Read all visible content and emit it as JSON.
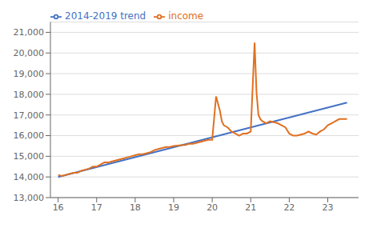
{
  "chart_data": {
    "type": "line",
    "series": [
      {
        "name": "2014-2019 trend",
        "color": "#4472C4",
        "x": [
          16.0,
          23.5
        ],
        "values": [
          14000,
          17600
        ]
      },
      {
        "name": "income",
        "color": "#E07020",
        "x": [
          16.0,
          16.1,
          16.2,
          16.3,
          16.4,
          16.5,
          16.6,
          16.7,
          16.8,
          16.9,
          17.0,
          17.1,
          17.2,
          17.3,
          17.4,
          17.5,
          17.6,
          17.7,
          17.8,
          17.9,
          18.0,
          18.1,
          18.2,
          18.3,
          18.4,
          18.5,
          18.6,
          18.7,
          18.8,
          18.9,
          19.0,
          19.1,
          19.2,
          19.3,
          19.4,
          19.5,
          19.6,
          19.7,
          19.8,
          19.9,
          20.0,
          20.1,
          20.2,
          20.25,
          20.3,
          20.4,
          20.5,
          20.6,
          20.7,
          20.8,
          20.9,
          21.0,
          21.1,
          21.15,
          21.2,
          21.25,
          21.3,
          21.4,
          21.5,
          21.6,
          21.7,
          21.8,
          21.9,
          22.0,
          22.1,
          22.2,
          22.3,
          22.4,
          22.5,
          22.6,
          22.7,
          22.8,
          22.9,
          23.0,
          23.1,
          23.2,
          23.3,
          23.4,
          23.5
        ],
        "values": [
          14100,
          14050,
          14100,
          14150,
          14200,
          14200,
          14300,
          14350,
          14400,
          14500,
          14500,
          14600,
          14700,
          14700,
          14750,
          14800,
          14850,
          14900,
          14950,
          15000,
          15050,
          15100,
          15100,
          15150,
          15200,
          15300,
          15350,
          15400,
          15450,
          15450,
          15500,
          15520,
          15540,
          15550,
          15600,
          15600,
          15650,
          15700,
          15750,
          15800,
          15800,
          17900,
          17200,
          16700,
          16500,
          16400,
          16200,
          16100,
          16000,
          16100,
          16100,
          16200,
          20500,
          18100,
          17000,
          16800,
          16700,
          16600,
          16700,
          16650,
          16600,
          16500,
          16400,
          16100,
          16000,
          16000,
          16050,
          16100,
          16200,
          16100,
          16050,
          16200,
          16300,
          16500,
          16600,
          16700,
          16800,
          16800,
          16800
        ]
      }
    ],
    "xlim": [
      15.8,
      23.8
    ],
    "xticks": [
      16,
      17,
      18,
      19,
      20,
      21,
      22,
      23
    ],
    "ylim": [
      13000,
      21500
    ],
    "yticks": [
      {
        "value": 13000,
        "label": "13,000"
      },
      {
        "value": 14000,
        "label": "14,000"
      },
      {
        "value": 15000,
        "label": "15,000"
      },
      {
        "value": 16000,
        "label": "16,000"
      },
      {
        "value": 17000,
        "label": "17,000"
      },
      {
        "value": 18000,
        "label": "18,000"
      },
      {
        "value": 19000,
        "label": "19,000"
      },
      {
        "value": 20000,
        "label": "20,000"
      },
      {
        "value": 21000,
        "label": "21,000"
      }
    ],
    "grid": true,
    "legend": "upper left"
  }
}
